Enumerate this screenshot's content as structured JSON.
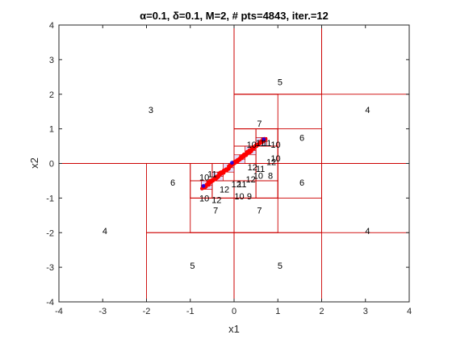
{
  "chart_data": {
    "type": "scatter",
    "title": "α=0.1, δ=0.1, M=2, # pts=4843, iter.=12",
    "xlabel": "x1",
    "ylabel": "x2",
    "xlim": [
      -4,
      4
    ],
    "ylim": [
      -4,
      4
    ],
    "x_ticks": [
      "-4",
      "-3",
      "-2",
      "-1",
      "0",
      "1",
      "2",
      "3",
      "4"
    ],
    "y_ticks": [
      "-4",
      "-3",
      "-2",
      "-1",
      "0",
      "1",
      "2",
      "3",
      "4"
    ],
    "grid": false,
    "colors": {
      "partition": "#cc0000",
      "points": "#ff0000",
      "detail": "#0000ff",
      "axes": "#262626"
    },
    "partition_cells": [
      [
        -4,
        0,
        4,
        4
      ],
      [
        0,
        -4,
        4,
        4
      ],
      [
        0,
        0,
        4,
        4
      ],
      [
        -4,
        -4,
        4,
        4
      ],
      [
        -2,
        -4,
        2,
        2
      ],
      [
        0,
        -4,
        2,
        2
      ],
      [
        0,
        2,
        2,
        2
      ],
      [
        2,
        2,
        2,
        2
      ],
      [
        2,
        -2,
        2,
        2
      ],
      [
        -2,
        -2,
        2,
        2
      ],
      [
        0,
        0,
        2,
        2
      ],
      [
        0,
        -2,
        2,
        2
      ],
      [
        0,
        1,
        1,
        1
      ],
      [
        1,
        0,
        1,
        1
      ],
      [
        1,
        -1,
        1,
        1
      ],
      [
        -1,
        -2,
        1,
        1
      ],
      [
        0,
        -2,
        1,
        1
      ],
      [
        -1,
        -1,
        1,
        1
      ],
      [
        0,
        -1,
        1,
        1
      ],
      [
        0,
        0,
        1,
        1
      ],
      [
        0.5,
        -0.5,
        0.5,
        0.5
      ],
      [
        0,
        0.5,
        0.5,
        0.5
      ],
      [
        0.5,
        0.5,
        0.5,
        0.5
      ],
      [
        -0.5,
        -1,
        0.5,
        0.5
      ],
      [
        -1,
        -0.5,
        0.5,
        0.5
      ],
      [
        -1,
        -1,
        0.5,
        0.5
      ],
      [
        0,
        -1,
        0.5,
        0.5
      ],
      [
        0.5,
        -1,
        0.5,
        0.5
      ],
      [
        -0.5,
        -0.5,
        0.5,
        0.5
      ],
      [
        0,
        -0.5,
        0.5,
        0.5
      ],
      [
        0,
        0,
        0.5,
        0.5
      ],
      [
        0.5,
        0,
        0.5,
        0.5
      ]
    ],
    "region_labels": [
      {
        "x": -1.9,
        "y": 1.55,
        "text": "3"
      },
      {
        "x": 1.05,
        "y": 2.35,
        "text": "5"
      },
      {
        "x": 3.05,
        "y": 1.55,
        "text": "4"
      },
      {
        "x": -2.95,
        "y": -1.95,
        "text": "4"
      },
      {
        "x": 3.05,
        "y": -1.95,
        "text": "4"
      },
      {
        "x": -0.95,
        "y": -2.95,
        "text": "5"
      },
      {
        "x": 1.05,
        "y": -2.95,
        "text": "5"
      },
      {
        "x": 0.58,
        "y": 1.15,
        "text": "7"
      },
      {
        "x": 1.55,
        "y": 0.75,
        "text": "6"
      },
      {
        "x": -1.4,
        "y": -0.55,
        "text": "6"
      },
      {
        "x": 1.55,
        "y": -0.55,
        "text": "6"
      },
      {
        "x": -0.42,
        "y": -1.35,
        "text": "7"
      },
      {
        "x": 0.58,
        "y": -1.35,
        "text": "7"
      },
      {
        "x": 0.83,
        "y": -0.35,
        "text": "8"
      },
      {
        "x": 0.35,
        "y": -0.95,
        "text": "9"
      },
      {
        "x": 0.4,
        "y": 0.55,
        "text": "10"
      },
      {
        "x": 0.95,
        "y": 0.55,
        "text": "10"
      },
      {
        "x": 0.95,
        "y": 0.15,
        "text": "10"
      },
      {
        "x": 0.55,
        "y": -0.35,
        "text": "10"
      },
      {
        "x": 0.12,
        "y": -0.95,
        "text": "10"
      },
      {
        "x": -0.68,
        "y": -0.4,
        "text": "10"
      },
      {
        "x": -0.68,
        "y": -1.0,
        "text": "10"
      },
      {
        "x": 0.6,
        "y": 0.6,
        "text": "11"
      },
      {
        "x": 0.75,
        "y": 0.6,
        "text": "11"
      },
      {
        "x": 0.6,
        "y": -0.15,
        "text": "11"
      },
      {
        "x": -0.5,
        "y": -0.3,
        "text": "11"
      },
      {
        "x": 0.18,
        "y": -0.6,
        "text": "11"
      },
      {
        "x": 0.85,
        "y": 0.05,
        "text": "12"
      },
      {
        "x": 0.42,
        "y": -0.1,
        "text": "12"
      },
      {
        "x": 0.38,
        "y": -0.45,
        "text": "12"
      },
      {
        "x": -0.22,
        "y": -0.75,
        "text": "12"
      },
      {
        "x": -0.4,
        "y": -1.05,
        "text": "12"
      },
      {
        "x": 0.05,
        "y": -0.6,
        "text": "12"
      }
    ],
    "detail_cells": [
      [
        -0.75,
        -0.75,
        0.25
      ],
      [
        -0.5,
        -0.5,
        0.25
      ],
      [
        -0.25,
        -0.25,
        0.25
      ],
      [
        0,
        0,
        0.25
      ],
      [
        0.25,
        0.25,
        0.25
      ],
      [
        0.5,
        0.5,
        0.25
      ],
      [
        -0.625,
        -0.625,
        0.125
      ],
      [
        -0.375,
        -0.375,
        0.125
      ],
      [
        -0.125,
        -0.125,
        0.125
      ],
      [
        0.125,
        0.125,
        0.125
      ],
      [
        0.375,
        0.375,
        0.125
      ],
      [
        0.625,
        0.625,
        0.125
      ]
    ],
    "point_band": {
      "x_start": -0.72,
      "x_end": 0.72,
      "slope": 1.0,
      "count": 4843
    }
  }
}
